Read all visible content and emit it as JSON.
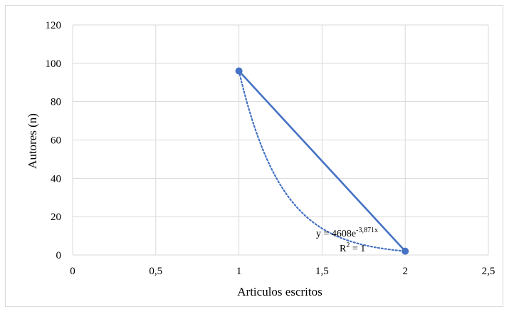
{
  "chart_data": {
    "type": "scatter",
    "title": "",
    "xlabel": "Articulos escritos",
    "ylabel": "Autores (n)",
    "xlim": [
      0,
      2.5
    ],
    "ylim": [
      0,
      120
    ],
    "x_ticks": [
      0,
      0.5,
      1,
      1.5,
      2,
      2.5
    ],
    "x_tick_labels": [
      "0",
      "0,5",
      "1",
      "1,5",
      "2",
      "2,5"
    ],
    "y_ticks": [
      0,
      20,
      40,
      60,
      80,
      100,
      120
    ],
    "y_tick_labels": [
      "0",
      "20",
      "40",
      "60",
      "80",
      "100",
      "120"
    ],
    "grid": true,
    "series": [
      {
        "x": [
          1,
          2
        ],
        "values": [
          96,
          2
        ],
        "color": "#4472c4",
        "style": "line-markers"
      }
    ],
    "trendline": {
      "kind": "exponential",
      "a": 4608,
      "b": -3.871,
      "color": "#4472c4",
      "style": "dotted",
      "x_range": [
        1,
        2
      ],
      "equation_prefix": "y = 4608e",
      "equation_exponent": "-3,871x",
      "r2_prefix": "R",
      "r2_exponent": "2",
      "r2_suffix": " = 1"
    }
  }
}
